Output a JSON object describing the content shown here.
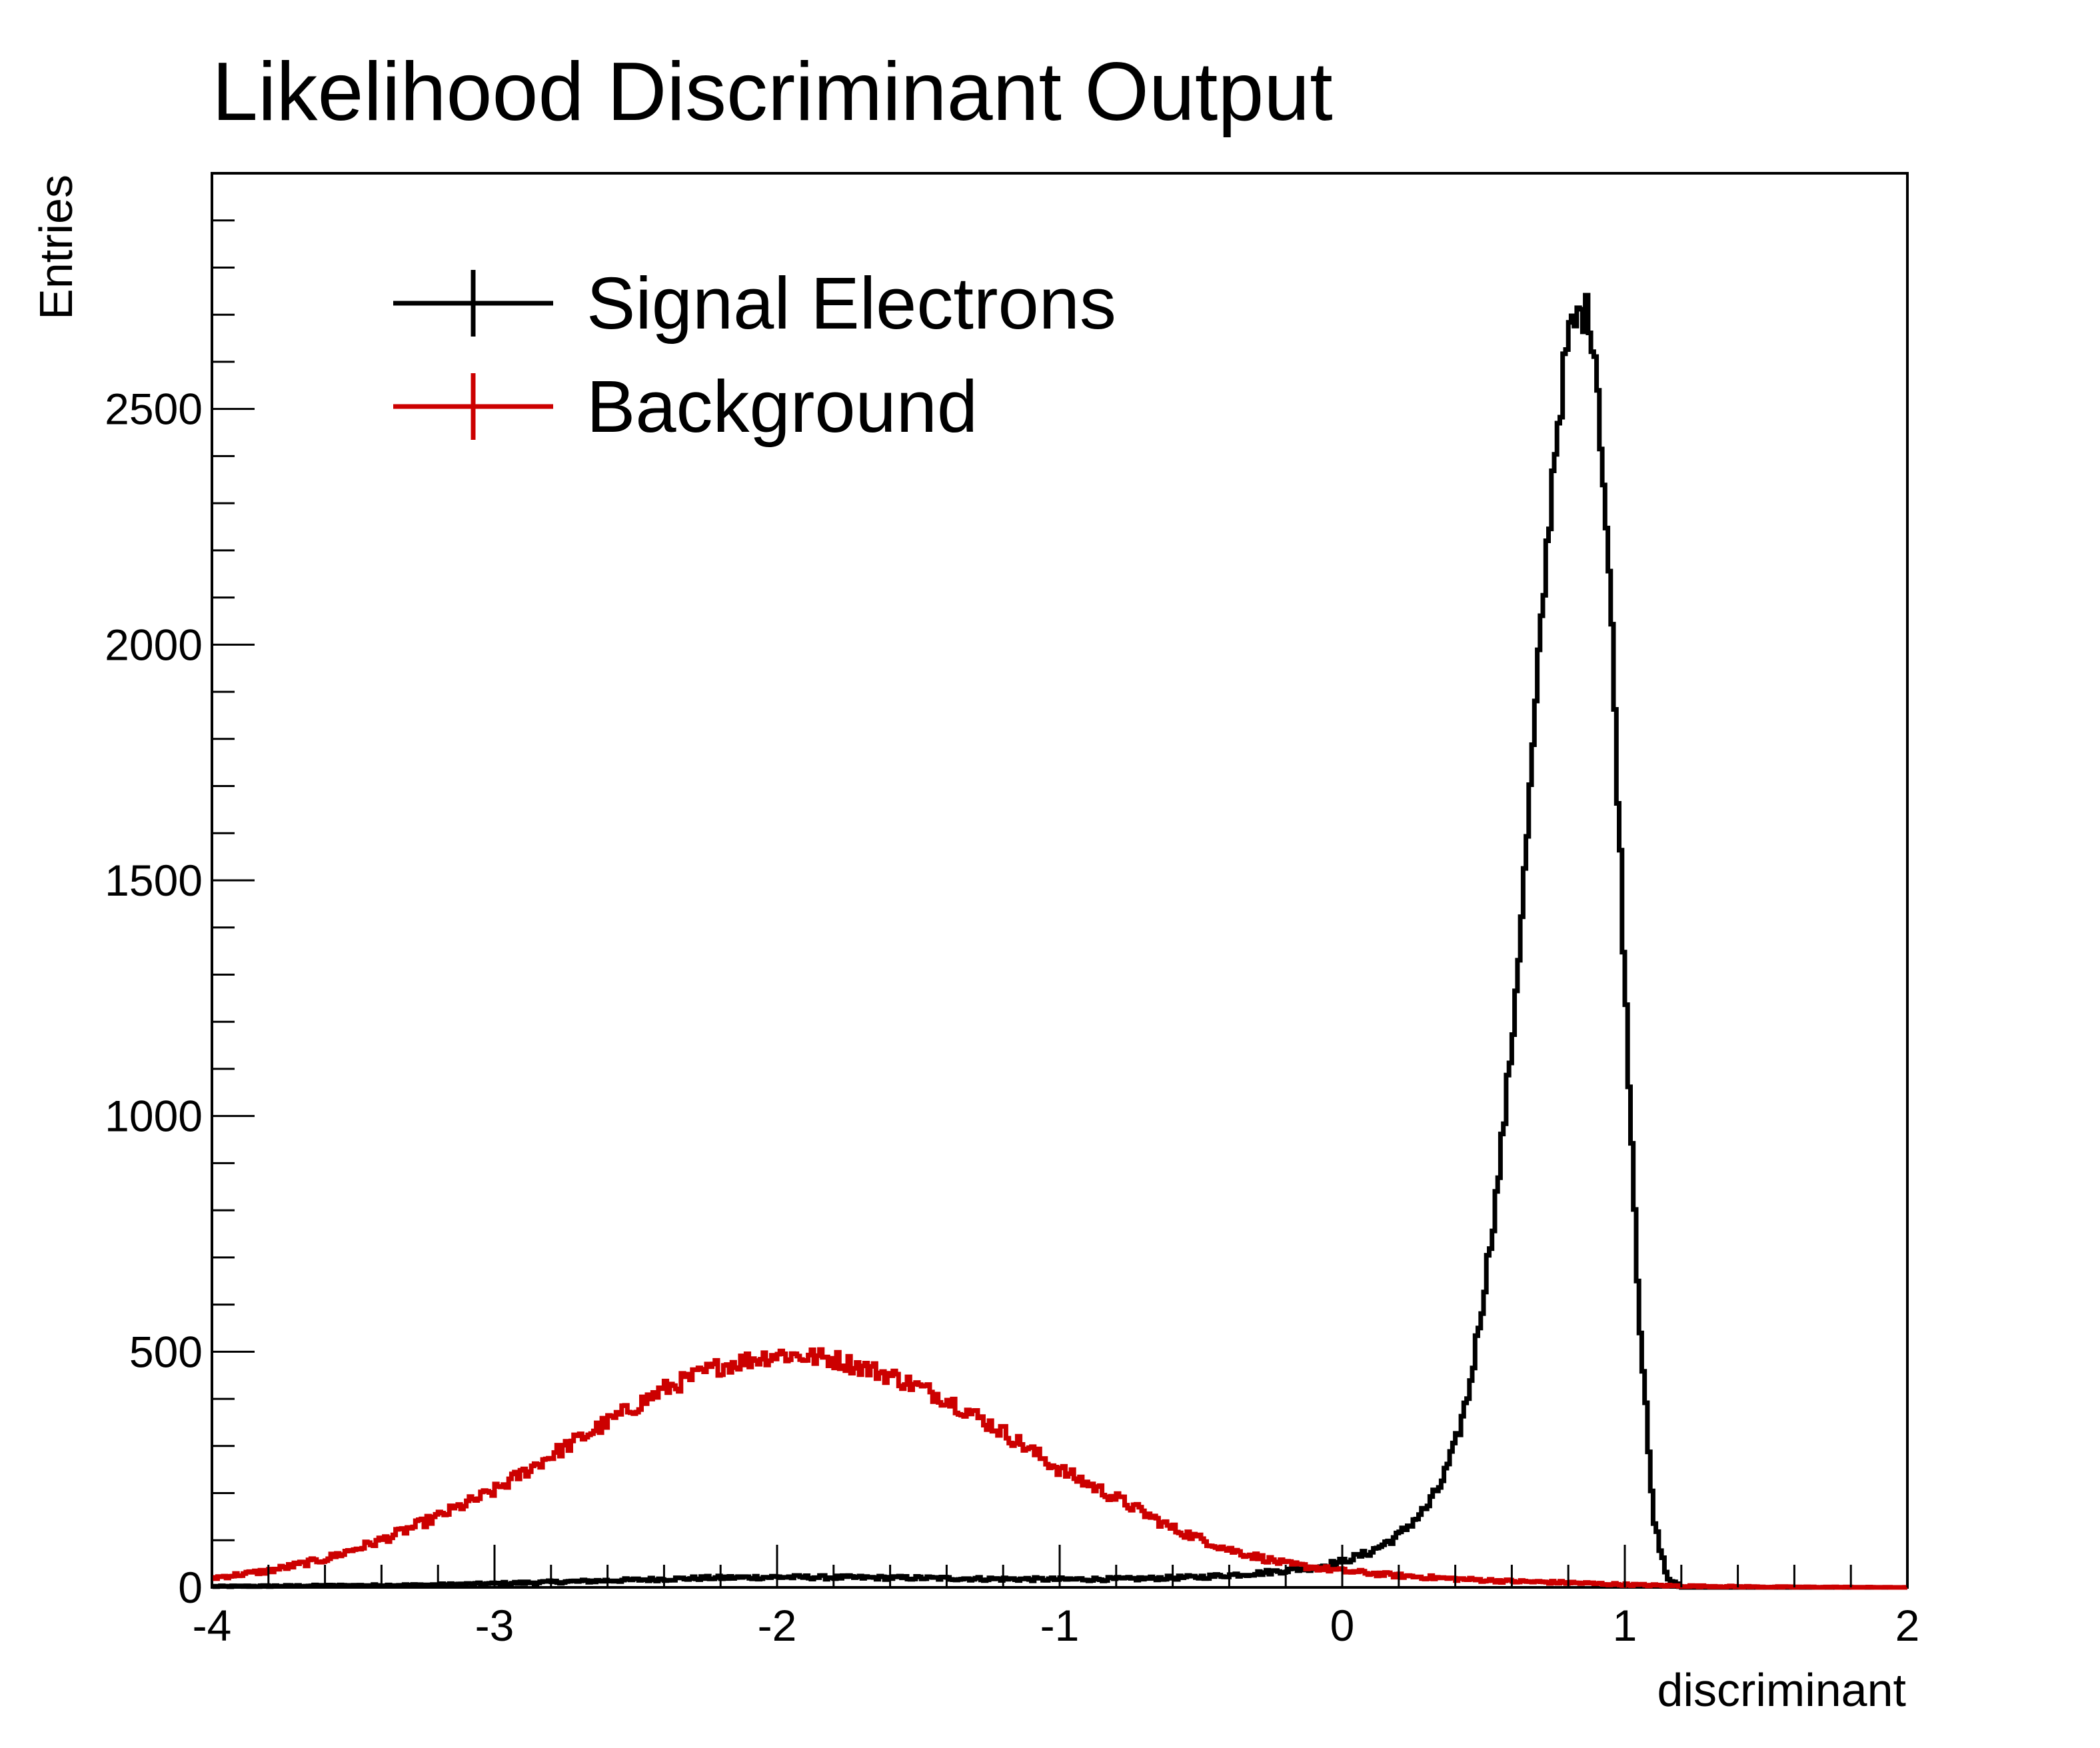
{
  "chart_data": {
    "type": "line",
    "title": "Likelihood Discriminant Output",
    "xlabel": "discriminant",
    "ylabel": "Entries",
    "xlim": [
      -4,
      2
    ],
    "ylim": [
      0,
      3000
    ],
    "x_ticks": [
      "-4",
      "-3",
      "-2",
      "-1",
      "0",
      "1",
      "2"
    ],
    "y_ticks": [
      "0",
      "500",
      "1000",
      "1500",
      "2000",
      "2500"
    ],
    "grid": false,
    "legend_position": "top-left",
    "series": [
      {
        "name": "Signal Electrons",
        "color": "#000000",
        "x": [
          -4.0,
          -3.75,
          -3.5,
          -3.25,
          -3.0,
          -2.75,
          -2.5,
          -2.25,
          -2.0,
          -1.75,
          -1.5,
          -1.25,
          -1.0,
          -0.75,
          -0.5,
          -0.3,
          -0.1,
          0.0,
          0.1,
          0.2,
          0.3,
          0.35,
          0.4,
          0.45,
          0.5,
          0.55,
          0.6,
          0.65,
          0.7,
          0.75,
          0.8,
          0.85,
          0.88,
          0.9,
          0.95,
          1.0,
          1.05,
          1.1,
          1.15,
          1.2,
          1.5,
          2.0
        ],
        "y": [
          2,
          3,
          4,
          5,
          8,
          12,
          16,
          20,
          22,
          21,
          20,
          18,
          17,
          18,
          22,
          30,
          42,
          55,
          75,
          110,
          170,
          220,
          300,
          420,
          620,
          850,
          1150,
          1550,
          2000,
          2400,
          2650,
          2710,
          2690,
          2600,
          2100,
          1300,
          600,
          150,
          20,
          0,
          0,
          0
        ]
      },
      {
        "name": "Background",
        "color": "#cc0000",
        "x": [
          -4.0,
          -3.8,
          -3.6,
          -3.4,
          -3.2,
          -3.0,
          -2.8,
          -2.6,
          -2.4,
          -2.2,
          -2.0,
          -1.8,
          -1.6,
          -1.4,
          -1.2,
          -1.0,
          -0.8,
          -0.6,
          -0.4,
          -0.2,
          0.0,
          0.2,
          0.4,
          0.6,
          0.8,
          1.0,
          1.2,
          1.5,
          2.0
        ],
        "y": [
          20,
          35,
          60,
          100,
          150,
          205,
          280,
          350,
          420,
          470,
          495,
          485,
          450,
          400,
          330,
          250,
          190,
          125,
          80,
          50,
          35,
          25,
          18,
          13,
          10,
          6,
          3,
          1,
          0
        ]
      }
    ]
  }
}
